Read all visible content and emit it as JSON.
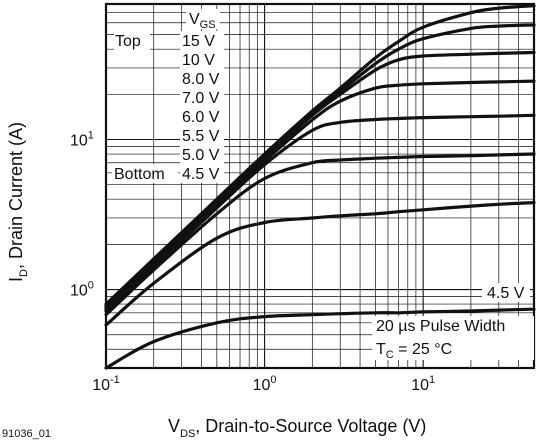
{
  "chart_data": {
    "type": "line",
    "xscale": "log",
    "yscale": "log",
    "xlim": [
      0.1,
      50
    ],
    "ylim": [
      0.3,
      80
    ],
    "grid": true,
    "xlabel_main": "V",
    "xlabel_sub": "DS",
    "xlabel_rest": ", Drain-to-Source Voltage (V)",
    "ylabel_main": "I",
    "ylabel_sub": "D",
    "ylabel_rest": ", Drain Current (A)",
    "x_ticks": [
      {
        "value": 0.1,
        "base": "10",
        "exp": "-1"
      },
      {
        "value": 1,
        "base": "10",
        "exp": "0"
      },
      {
        "value": 10,
        "base": "10",
        "exp": "1"
      }
    ],
    "y_ticks": [
      {
        "value": 1,
        "base": "10",
        "exp": "0"
      },
      {
        "value": 10,
        "base": "10",
        "exp": "1"
      }
    ],
    "legend": {
      "header_main": "V",
      "header_sub": "GS",
      "top_label": "Top",
      "bottom_label": "Bottom",
      "entries": [
        "15 V",
        "10 V",
        "8.0 V",
        "7.0 V",
        "6.0 V",
        "5.5 V",
        "5.0 V",
        "4.5 V"
      ]
    },
    "annotations": {
      "curve_label": "4.5 V",
      "pulse": "20 µs Pulse Width",
      "temp_main": "T",
      "temp_sub": "C",
      "temp_rest": " = 25 °C"
    },
    "series": [
      {
        "x": [
          0.1,
          0.2,
          0.5,
          1,
          2,
          3,
          5,
          7,
          10,
          20,
          30,
          50
        ],
        "y": [
          0.8,
          1.6,
          4,
          8,
          15.5,
          22,
          35,
          45,
          56,
          70,
          75,
          78
        ]
      },
      {
        "x": [
          0.1,
          0.2,
          0.5,
          1,
          2,
          3,
          5,
          7,
          10,
          20,
          30,
          50
        ],
        "y": [
          0.78,
          1.55,
          3.9,
          7.8,
          15,
          21,
          32,
          40,
          47,
          55,
          57,
          58
        ]
      },
      {
        "x": [
          0.1,
          0.2,
          0.5,
          1,
          2,
          3,
          5,
          7,
          10,
          20,
          30,
          50
        ],
        "y": [
          0.76,
          1.52,
          3.8,
          7.5,
          14.5,
          20,
          29,
          34,
          36,
          37,
          37.5,
          38
        ]
      },
      {
        "x": [
          0.1,
          0.2,
          0.5,
          1,
          2,
          3,
          5,
          7,
          10,
          20,
          30,
          50
        ],
        "y": [
          0.74,
          1.48,
          3.7,
          7.2,
          13.5,
          18,
          22,
          23,
          23.5,
          24,
          24.2,
          24.5
        ]
      },
      {
        "x": [
          0.1,
          0.2,
          0.5,
          1,
          2,
          3,
          5,
          7,
          10,
          20,
          30,
          50
        ],
        "y": [
          0.72,
          1.42,
          3.5,
          6.8,
          11.5,
          13,
          13.6,
          13.8,
          14,
          14.2,
          14.3,
          14.5
        ]
      },
      {
        "x": [
          0.1,
          0.2,
          0.5,
          1,
          2,
          3,
          5,
          7,
          10,
          20,
          30,
          50
        ],
        "y": [
          0.68,
          1.35,
          3.2,
          5.5,
          7,
          7.3,
          7.5,
          7.6,
          7.7,
          7.8,
          7.9,
          8
        ]
      },
      {
        "x": [
          0.1,
          0.2,
          0.5,
          1,
          2,
          3,
          5,
          7,
          10,
          20,
          30,
          50
        ],
        "y": [
          0.58,
          1.1,
          2.2,
          2.8,
          3,
          3.1,
          3.2,
          3.3,
          3.4,
          3.6,
          3.7,
          3.8
        ]
      },
      {
        "x": [
          0.1,
          0.2,
          0.5,
          1,
          2,
          3,
          5,
          7,
          10,
          20,
          30,
          50
        ],
        "y": [
          0.3,
          0.45,
          0.6,
          0.66,
          0.68,
          0.69,
          0.7,
          0.7,
          0.71,
          0.72,
          0.73,
          0.74
        ]
      }
    ]
  },
  "figure_id": "91036_01"
}
